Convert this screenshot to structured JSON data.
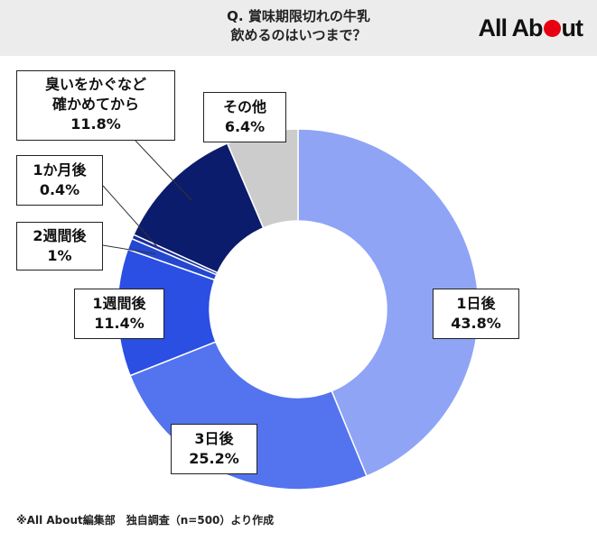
{
  "title": {
    "line1": "Q. 賞味期限切れの牛乳",
    "line2": "飲めるのはいつまで？"
  },
  "brand": {
    "logo_before": "All Ab",
    "logo_after": "ut",
    "color": "#e60012"
  },
  "footer": "※All About編集部　独自調査（n=500）より作成",
  "chart_data": {
    "type": "pie",
    "donut": true,
    "title": "Q. 賞味期限切れの牛乳 飲めるのはいつまで？",
    "categories": [
      "1日後",
      "3日後",
      "1週間後",
      "2週間後",
      "1か月後",
      "臭いをかぐなど確かめてから",
      "その他"
    ],
    "values": [
      43.8,
      25.2,
      11.4,
      1,
      0.4,
      11.8,
      6.4
    ],
    "colors": [
      "#8fa4f5",
      "#5373ef",
      "#2b4ee3",
      "#2447d0",
      "#1a2e9c",
      "#0c1c6c",
      "#cccccc"
    ],
    "labels": [
      {
        "name": "1日後",
        "value": "43.8%"
      },
      {
        "name": "3日後",
        "value": "25.2%"
      },
      {
        "name": "1週間後",
        "value": "11.4%"
      },
      {
        "name": "2週間後",
        "value": "1%"
      },
      {
        "name": "1か月後",
        "value": "0.4%"
      },
      {
        "name": "臭いをかぐなど",
        "name2": "確かめてから",
        "value": "11.8%"
      },
      {
        "name": "その他",
        "value": "6.4%"
      }
    ]
  }
}
